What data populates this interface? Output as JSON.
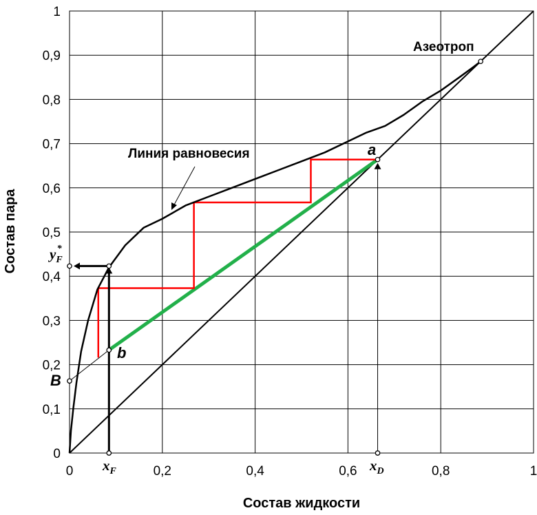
{
  "chart_data": {
    "type": "line",
    "xlabel": "Состав жидкости",
    "ylabel": "Состав пара",
    "xlim": [
      0,
      1
    ],
    "ylim": [
      0,
      1
    ],
    "grid": true,
    "x_ticks": [
      "0",
      "0,2",
      "0,4",
      "0,6",
      "0,8",
      "1"
    ],
    "y_ticks": [
      "0",
      "0,1",
      "0,2",
      "0,3",
      "0,4",
      "0,5",
      "0,6",
      "0,7",
      "0,8",
      "0,9",
      "1"
    ],
    "series": [
      {
        "name": "Линия равновесия",
        "color": "#000000",
        "x": [
          0,
          0.003,
          0.008,
          0.015,
          0.025,
          0.04,
          0.06,
          0.085,
          0.12,
          0.16,
          0.2,
          0.25,
          0.3,
          0.35,
          0.4,
          0.45,
          0.5,
          0.55,
          0.6,
          0.64,
          0.68,
          0.72,
          0.76,
          0.8,
          0.84,
          0.87,
          0.886
        ],
        "y": [
          0,
          0.05,
          0.1,
          0.16,
          0.23,
          0.3,
          0.37,
          0.42,
          0.47,
          0.51,
          0.53,
          0.56,
          0.58,
          0.6,
          0.62,
          0.64,
          0.66,
          0.68,
          0.705,
          0.725,
          0.74,
          0.765,
          0.795,
          0.82,
          0.85,
          0.873,
          0.886
        ]
      },
      {
        "name": "diagonal",
        "color": "#000000",
        "x": [
          0,
          1
        ],
        "y": [
          0,
          1
        ]
      },
      {
        "name": "operating-line",
        "color": "#22b04a",
        "x": [
          0.085,
          0.664
        ],
        "y": [
          0.233,
          0.664
        ]
      },
      {
        "name": "steps",
        "color": "#ff0000",
        "x": [
          0.664,
          0.52,
          0.52,
          0.268,
          0.268,
          0.062,
          0.062
        ],
        "y": [
          0.664,
          0.664,
          0.567,
          0.567,
          0.373,
          0.373,
          0.216
        ]
      }
    ],
    "points": [
      {
        "label": "Азеотроп",
        "x": 0.886,
        "y": 0.886
      },
      {
        "label": "a",
        "x": 0.664,
        "y": 0.664
      },
      {
        "label": "b",
        "x": 0.085,
        "y": 0.233
      },
      {
        "label": "B",
        "x": 0,
        "y": 0.163
      },
      {
        "label": "x_F",
        "x": 0.085,
        "y": 0
      },
      {
        "label": "x_D",
        "x": 0.664,
        "y": 0
      },
      {
        "label": "y_F*",
        "x": 0,
        "y": 0.423
      }
    ],
    "annotations": {
      "equilibrium_label": "Линия равновесия",
      "azeotrope_label": "Азеотроп",
      "a_label": "a",
      "b_label": "b",
      "B_label": "B",
      "xF_main": "x",
      "xF_sub": "F",
      "xD_main": "x",
      "xD_sub": "D",
      "yF_main": "y",
      "yF_sub": "F",
      "yF_sup": "*"
    }
  }
}
